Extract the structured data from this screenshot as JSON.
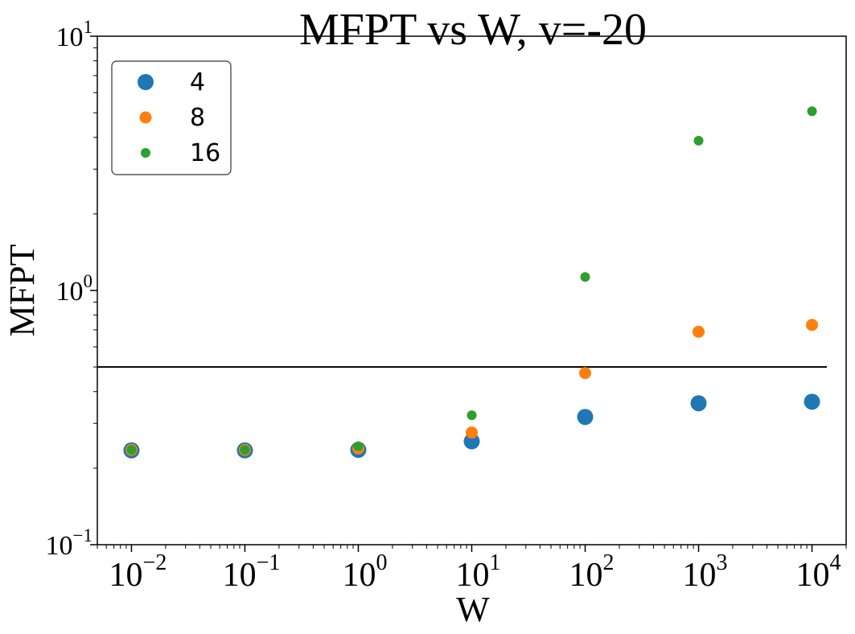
{
  "chart_data": {
    "type": "scatter",
    "title": "MFPT vs W, v=-20",
    "xlabel": "W",
    "ylabel": "MFPT",
    "xscale": "log",
    "yscale": "log",
    "xlim": [
      0.005,
      20000
    ],
    "ylim": [
      0.1,
      10
    ],
    "grid": false,
    "legend_position": "top-left",
    "x_ticks": [
      {
        "value": 0.01,
        "base": "10",
        "exp": "−2"
      },
      {
        "value": 0.1,
        "base": "10",
        "exp": "−1"
      },
      {
        "value": 1,
        "base": "10",
        "exp": "0"
      },
      {
        "value": 10,
        "base": "10",
        "exp": "1"
      },
      {
        "value": 100,
        "base": "10",
        "exp": "2"
      },
      {
        "value": 1000,
        "base": "10",
        "exp": "3"
      },
      {
        "value": 10000,
        "base": "10",
        "exp": "4"
      }
    ],
    "y_ticks": [
      {
        "value": 0.1,
        "base": "10",
        "exp": "−1"
      },
      {
        "value": 1,
        "base": "10",
        "exp": "0"
      },
      {
        "value": 10,
        "base": "10",
        "exp": "1"
      }
    ],
    "hline": {
      "y": 0.5,
      "color": "#000000"
    },
    "series": [
      {
        "name": "4",
        "color": "#1f77b4",
        "x": [
          0.01,
          0.1,
          1,
          10,
          100,
          1000,
          10000
        ],
        "y": [
          0.235,
          0.235,
          0.236,
          0.255,
          0.318,
          0.36,
          0.365
        ]
      },
      {
        "name": "8",
        "color": "#ff7f0e",
        "x": [
          0.01,
          0.1,
          1,
          10,
          100,
          1000,
          10000
        ],
        "y": [
          0.236,
          0.236,
          0.239,
          0.276,
          0.473,
          0.688,
          0.732
        ]
      },
      {
        "name": "16",
        "color": "#2ca02c",
        "x": [
          0.01,
          0.1,
          1,
          10,
          100,
          1000,
          10000
        ],
        "y": [
          0.236,
          0.236,
          0.244,
          0.323,
          1.13,
          3.88,
          5.07
        ]
      }
    ]
  }
}
